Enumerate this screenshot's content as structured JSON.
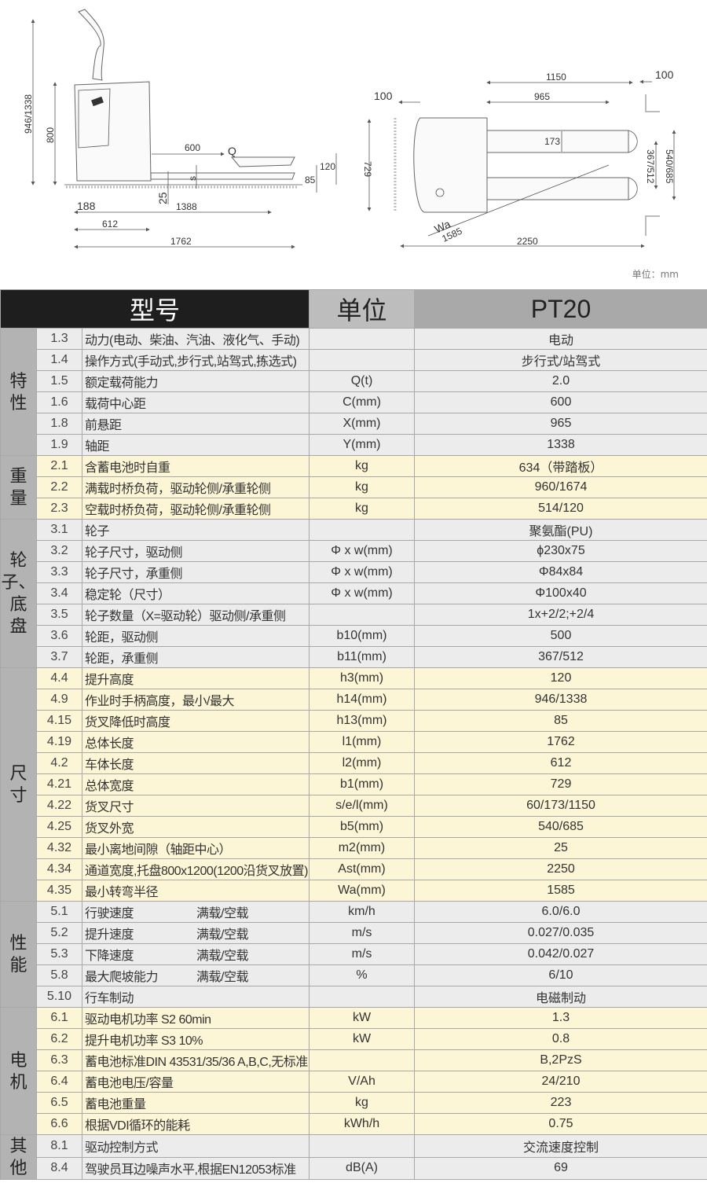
{
  "drawings": {
    "side_view": {
      "handle_height": "946/1338",
      "body_height": "800",
      "load_center": "600",
      "load_symbol": "Q",
      "lift_height": "120",
      "s_label": "s",
      "lowered_height": "85",
      "ground_clearance": "25",
      "dim_188": "188",
      "dim_1388": "1388",
      "length_to_face": "612",
      "overall_length": "1762"
    },
    "top_view": {
      "fork_length": "1150",
      "clearance_right": "100",
      "clearance_left": "100",
      "front_overhang": "965",
      "fork_width": "173",
      "overall_width": "729",
      "wheel_track": "367/512",
      "fork_spread": "540/685",
      "turning_label": "Wa",
      "turning_radius": "1585",
      "aisle_width": "2250"
    },
    "unit_note": "单位：mm"
  },
  "table": {
    "header": {
      "model": "型号",
      "unit": "单位",
      "value": "PT20"
    },
    "groups": [
      {
        "label": [
          "特",
          "性"
        ],
        "tone": "g",
        "rows": [
          {
            "num": "1.3",
            "param": "动力(电动、柴油、汽油、液化气、手动)",
            "unit": "",
            "value": "电动"
          },
          {
            "num": "1.4",
            "param": "操作方式(手动式,步行式,站驾式,拣选式)",
            "unit": "",
            "value": "步行式/站驾式"
          },
          {
            "num": "1.5",
            "param": "额定载荷能力",
            "unit": "Q(t)",
            "value": "2.0"
          },
          {
            "num": "1.6",
            "param": "载荷中心距",
            "unit": "C(mm)",
            "value": "600"
          },
          {
            "num": "1.8",
            "param": "前悬距",
            "unit": "X(mm)",
            "value": "965"
          },
          {
            "num": "1.9",
            "param": "轴距",
            "unit": "Y(mm)",
            "value": "1338"
          }
        ]
      },
      {
        "label": [
          "重",
          "量"
        ],
        "tone": "y",
        "rows": [
          {
            "num": "2.1",
            "param": "含蓄电池时自重",
            "unit": "kg",
            "value": "634（带踏板）"
          },
          {
            "num": "2.2",
            "param": "满载时桥负荷，驱动轮侧/承重轮侧",
            "unit": "kg",
            "value": "960/1674"
          },
          {
            "num": "2.3",
            "param": "空载时桥负荷，驱动轮侧/承重轮侧",
            "unit": "kg",
            "value": "514/120"
          }
        ]
      },
      {
        "label": [
          "轮",
          "子、",
          "底",
          "盘"
        ],
        "tone": "g",
        "rows": [
          {
            "num": "3.1",
            "param": "轮子",
            "unit": "",
            "value": "聚氨酯(PU)"
          },
          {
            "num": "3.2",
            "param": "轮子尺寸，驱动侧",
            "unit": "Φ x w(mm)",
            "value": "ϕ230x75"
          },
          {
            "num": "3.3",
            "param": "轮子尺寸，承重侧",
            "unit": "Φ x w(mm)",
            "value": "Φ84x84"
          },
          {
            "num": "3.4",
            "param": "稳定轮（尺寸）",
            "unit": "Φ x w(mm)",
            "value": "Φ100x40"
          },
          {
            "num": "3.5",
            "param": "轮子数量（X=驱动轮）驱动侧/承重侧",
            "unit": "",
            "value": "1x+2/2;+2/4"
          },
          {
            "num": "3.6",
            "param": "轮距，驱动侧",
            "unit": "b10(mm)",
            "value": "500"
          },
          {
            "num": "3.7",
            "param": "轮距，承重侧",
            "unit": "b11(mm)",
            "value": "367/512"
          }
        ]
      },
      {
        "label": [
          "尺",
          "寸"
        ],
        "tone": "y",
        "rows": [
          {
            "num": "4.4",
            "param": "提升高度",
            "unit": "h3(mm)",
            "value": "120"
          },
          {
            "num": "4.9",
            "param": "作业时手柄高度，最小/最大",
            "unit": "h14(mm)",
            "value": "946/1338"
          },
          {
            "num": "4.15",
            "param": "货叉降低时高度",
            "unit": "h13(mm)",
            "value": "85"
          },
          {
            "num": "4.19",
            "param": "总体长度",
            "unit": "l1(mm)",
            "value": "1762"
          },
          {
            "num": "4.2",
            "param": "车体长度",
            "unit": "l2(mm)",
            "value": "612"
          },
          {
            "num": "4.21",
            "param": "总体宽度",
            "unit": "b1(mm)",
            "value": "729"
          },
          {
            "num": "4.22",
            "param": "货叉尺寸",
            "unit": "s/e/l(mm)",
            "value": "60/173/1150"
          },
          {
            "num": "4.25",
            "param": "货叉外宽",
            "unit": "b5(mm)",
            "value": "540/685"
          },
          {
            "num": "4.32",
            "param": "最小离地间隙（轴距中心）",
            "unit": "m2(mm)",
            "value": "25"
          },
          {
            "num": "4.34",
            "param": "通道宽度,托盘800x1200(1200沿货叉放置)",
            "unit": "Ast(mm)",
            "value": "2250"
          },
          {
            "num": "4.35",
            "param": "最小转弯半径",
            "unit": "Wa(mm)",
            "value": "1585"
          }
        ]
      },
      {
        "label": [
          "性",
          "能"
        ],
        "tone": "g",
        "rows": [
          {
            "num": "5.1",
            "param": "行驶速度",
            "note": "满载/空载",
            "unit": "km/h",
            "value": "6.0/6.0"
          },
          {
            "num": "5.2",
            "param": "提升速度",
            "note": "满载/空载",
            "unit": "m/s",
            "value": "0.027/0.035"
          },
          {
            "num": "5.3",
            "param": "下降速度",
            "note": "满载/空载",
            "unit": "m/s",
            "value": "0.042/0.027"
          },
          {
            "num": "5.8",
            "param": "最大爬坡能力",
            "note": "满载/空载",
            "unit": "%",
            "value": "6/10"
          },
          {
            "num": "5.10",
            "param": "行车制动",
            "unit": "",
            "value": "电磁制动"
          }
        ]
      },
      {
        "label": [
          "电",
          "机"
        ],
        "tone": "y",
        "rows": [
          {
            "num": "6.1",
            "param": "驱动电机功率 S2 60min",
            "unit": "kW",
            "value": "1.3"
          },
          {
            "num": "6.2",
            "param": "提升电机功率 S3 10%",
            "unit": "kW",
            "value": "0.8"
          },
          {
            "num": "6.3",
            "param": "蓄电池标准DIN 43531/35/36 A,B,C,无标准",
            "unit": "",
            "value": "B,2PzS"
          },
          {
            "num": "6.4",
            "param": "蓄电池电压/容量",
            "unit": "V/Ah",
            "value": "24/210"
          },
          {
            "num": "6.5",
            "param": "蓄电池重量",
            "unit": "kg",
            "value": "223"
          },
          {
            "num": "6.6",
            "param": "根据VDI循环的能耗",
            "unit": "kWh/h",
            "value": "0.75"
          }
        ]
      },
      {
        "label": [
          "其",
          "他"
        ],
        "tone": "g",
        "rows": [
          {
            "num": "8.1",
            "param": "驱动控制方式",
            "unit": "",
            "value": "交流速度控制"
          },
          {
            "num": "8.4",
            "param": "驾驶员耳边噪声水平,根据EN12053标准",
            "unit": "dB(A)",
            "value": "69"
          }
        ]
      }
    ]
  }
}
